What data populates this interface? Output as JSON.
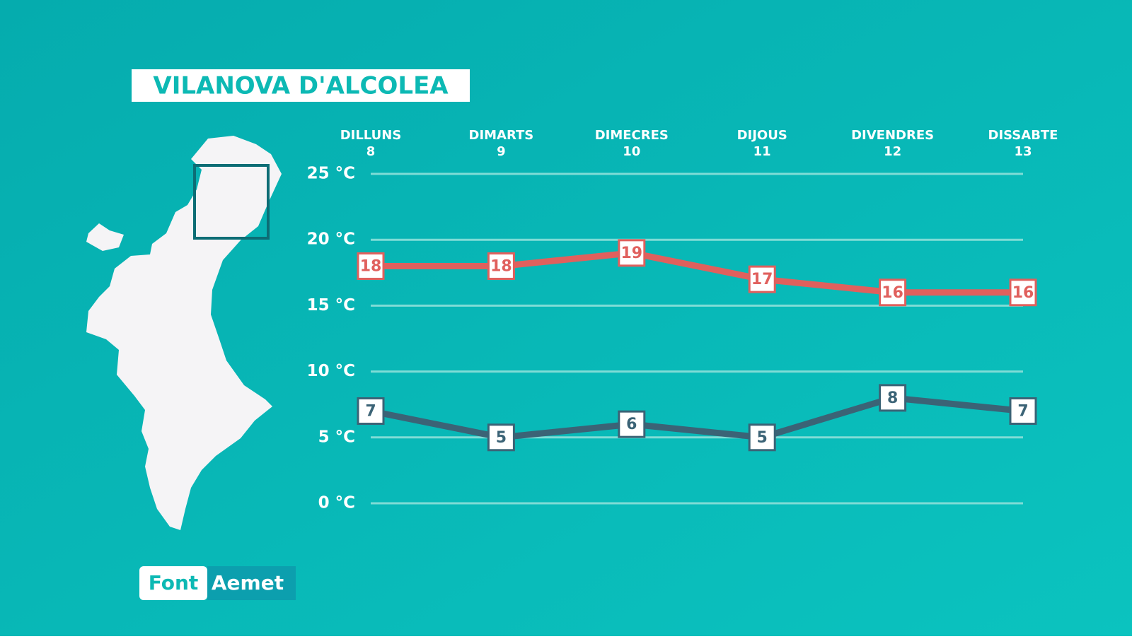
{
  "chart_data": {
    "type": "line",
    "title": "VILANOVA D'ALCOLEA",
    "categories": [
      "DILLUNS",
      "DIMARTS",
      "DIMECRES",
      "DIJOUS",
      "DIVENDRES",
      "DISSABTE"
    ],
    "dates": [
      "8",
      "9",
      "10",
      "11",
      "12",
      "13"
    ],
    "series": [
      {
        "color": "#e0605d",
        "values": [
          18,
          18,
          19,
          17,
          16,
          16
        ]
      },
      {
        "color": "#3b6376",
        "values": [
          7,
          5,
          6,
          5,
          8,
          7
        ]
      }
    ],
    "ylim": [
      0,
      25
    ],
    "yticks": [
      {
        "value": 0,
        "label": "0 °C"
      },
      {
        "value": 5,
        "label": "5 °C"
      },
      {
        "value": 10,
        "label": "10 °C"
      },
      {
        "value": 15,
        "label": "15 °C"
      },
      {
        "value": 20,
        "label": "20 °C"
      },
      {
        "value": 25,
        "label": "25 °C"
      }
    ],
    "grid": true,
    "source_label": "Font",
    "source": "Aemet"
  }
}
